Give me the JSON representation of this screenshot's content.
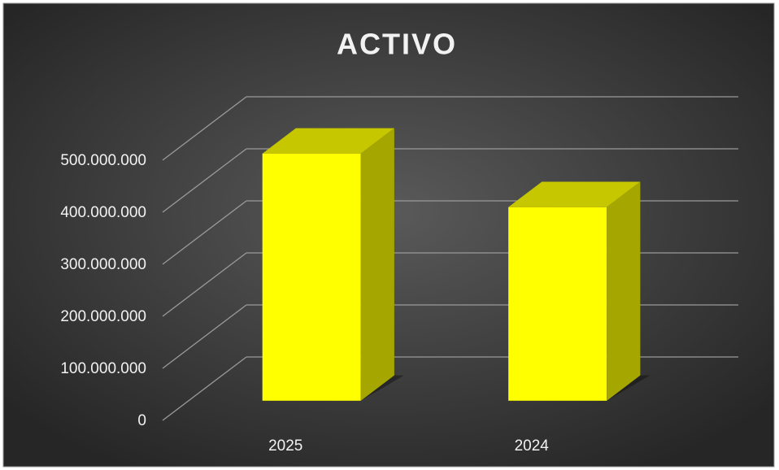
{
  "chart_data": {
    "type": "bar3d",
    "title": "ACTIVO",
    "categories": [
      "2025",
      "2024"
    ],
    "values": [
      475000000,
      372000000
    ],
    "color": "#ffff00",
    "ylim": [
      0,
      500000000
    ],
    "yticks": [
      0,
      {
        "value": 100000000,
        "label": "100.000.000"
      },
      {
        "value": 200000000,
        "label": "200.000.000"
      },
      {
        "value": 300000000,
        "label": "300.000.000"
      },
      {
        "value": 400000000,
        "label": "400.000.000"
      },
      {
        "value": 500000000,
        "label": "500.000.000"
      }
    ],
    "grid": true
  }
}
